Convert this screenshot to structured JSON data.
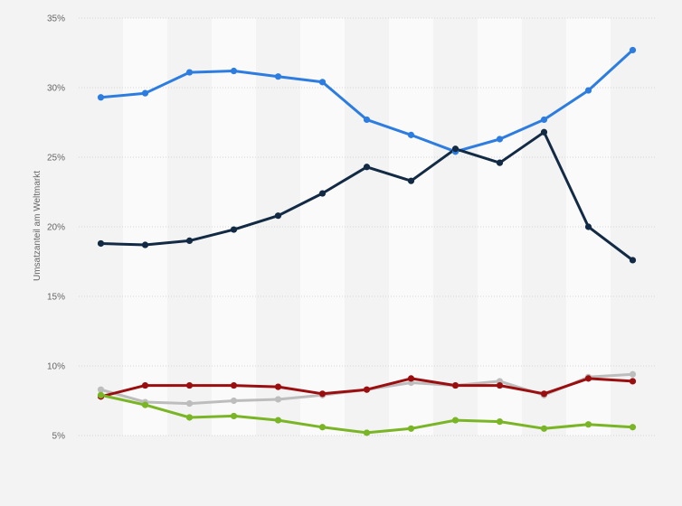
{
  "chart_data": {
    "type": "line",
    "title": "",
    "xlabel": "",
    "ylabel": "Umsatzanteil am Weltmarkt",
    "y_ticks": [
      "5%",
      "10%",
      "15%",
      "20%",
      "25%",
      "30%",
      "35%"
    ],
    "ylim": [
      5,
      35
    ],
    "grid": true,
    "x_count": 13,
    "series": [
      {
        "color": "#2d7de0",
        "values": [
          29.3,
          29.6,
          31.1,
          31.2,
          30.8,
          30.4,
          27.7,
          26.6,
          25.4,
          26.3,
          27.7,
          29.8,
          32.7
        ]
      },
      {
        "color": "#132a45",
        "values": [
          18.8,
          18.7,
          19.0,
          19.8,
          20.8,
          22.4,
          24.3,
          23.3,
          25.6,
          24.6,
          26.8,
          20.0,
          17.6
        ]
      },
      {
        "color": "#bdbdbd",
        "values": [
          8.3,
          7.4,
          7.3,
          7.5,
          7.6,
          7.9,
          8.3,
          8.8,
          8.6,
          8.9,
          7.9,
          9.2,
          9.4
        ]
      },
      {
        "color": "#9b0e10",
        "values": [
          7.8,
          8.6,
          8.6,
          8.6,
          8.5,
          8.0,
          8.3,
          9.1,
          8.6,
          8.6,
          8.0,
          9.1,
          8.9
        ]
      },
      {
        "color": "#7ab526",
        "values": [
          7.9,
          7.2,
          6.3,
          6.4,
          6.1,
          5.6,
          5.2,
          5.5,
          6.1,
          6.0,
          5.5,
          5.8,
          5.6
        ]
      }
    ]
  }
}
